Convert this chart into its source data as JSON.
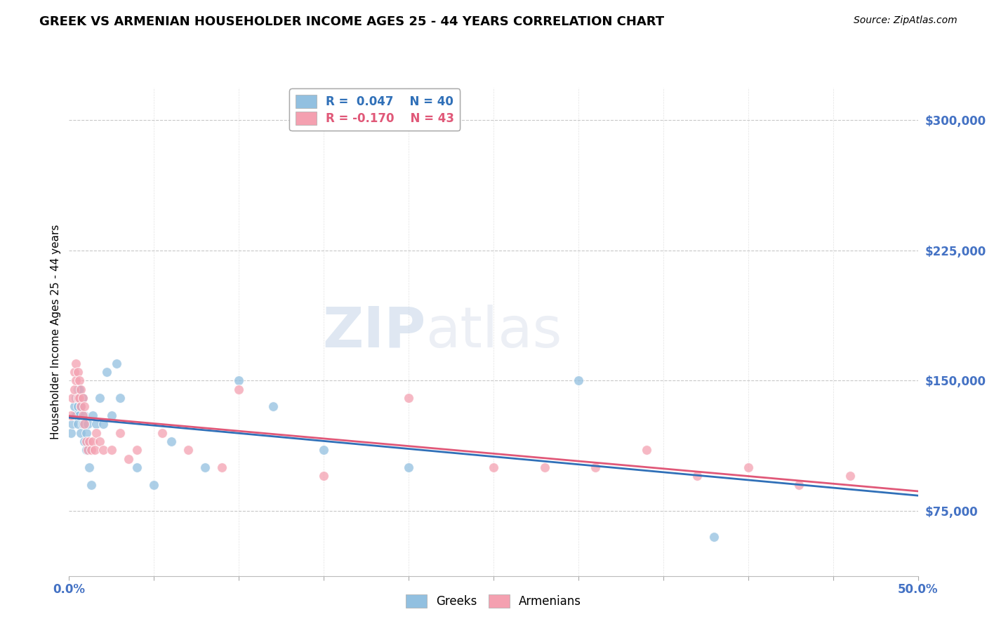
{
  "title": "GREEK VS ARMENIAN HOUSEHOLDER INCOME AGES 25 - 44 YEARS CORRELATION CHART",
  "source": "Source: ZipAtlas.com",
  "ylabel": "Householder Income Ages 25 - 44 years",
  "xlim": [
    0.0,
    0.5
  ],
  "ylim": [
    37500,
    318750
  ],
  "yticks": [
    75000,
    150000,
    225000,
    300000
  ],
  "ytick_labels": [
    "$75,000",
    "$150,000",
    "$225,000",
    "$300,000"
  ],
  "watermark_zip": "ZIP",
  "watermark_atlas": "atlas",
  "greek_R": "0.047",
  "greek_N": "40",
  "armenian_R": "-0.170",
  "armenian_N": "43",
  "greek_color": "#92c0e0",
  "armenian_color": "#f4a0b0",
  "greek_line_color": "#3070b8",
  "armenian_line_color": "#e05878",
  "background_color": "#ffffff",
  "grid_color": "#c8c8c8",
  "label_color": "#4472c4",
  "greek_x": [
    0.001,
    0.002,
    0.003,
    0.003,
    0.004,
    0.004,
    0.005,
    0.005,
    0.005,
    0.006,
    0.006,
    0.007,
    0.007,
    0.008,
    0.008,
    0.009,
    0.009,
    0.01,
    0.01,
    0.011,
    0.012,
    0.013,
    0.014,
    0.016,
    0.018,
    0.02,
    0.022,
    0.025,
    0.028,
    0.03,
    0.04,
    0.05,
    0.06,
    0.08,
    0.1,
    0.12,
    0.15,
    0.2,
    0.3,
    0.38
  ],
  "greek_y": [
    120000,
    125000,
    130000,
    135000,
    130000,
    140000,
    125000,
    135000,
    145000,
    130000,
    145000,
    120000,
    135000,
    125000,
    140000,
    115000,
    130000,
    110000,
    120000,
    125000,
    100000,
    90000,
    130000,
    125000,
    140000,
    125000,
    155000,
    130000,
    160000,
    140000,
    100000,
    90000,
    115000,
    100000,
    150000,
    135000,
    110000,
    100000,
    150000,
    60000
  ],
  "armenian_x": [
    0.001,
    0.002,
    0.003,
    0.003,
    0.004,
    0.004,
    0.005,
    0.005,
    0.006,
    0.006,
    0.007,
    0.007,
    0.008,
    0.008,
    0.009,
    0.009,
    0.01,
    0.011,
    0.012,
    0.013,
    0.014,
    0.015,
    0.016,
    0.018,
    0.02,
    0.025,
    0.03,
    0.035,
    0.04,
    0.055,
    0.07,
    0.09,
    0.1,
    0.15,
    0.2,
    0.25,
    0.28,
    0.31,
    0.34,
    0.37,
    0.4,
    0.43,
    0.46
  ],
  "armenian_y": [
    130000,
    140000,
    145000,
    155000,
    150000,
    160000,
    140000,
    155000,
    140000,
    150000,
    135000,
    145000,
    130000,
    140000,
    125000,
    135000,
    115000,
    110000,
    115000,
    110000,
    115000,
    110000,
    120000,
    115000,
    110000,
    110000,
    120000,
    105000,
    110000,
    120000,
    110000,
    100000,
    145000,
    95000,
    140000,
    100000,
    100000,
    100000,
    110000,
    95000,
    100000,
    90000,
    95000
  ]
}
